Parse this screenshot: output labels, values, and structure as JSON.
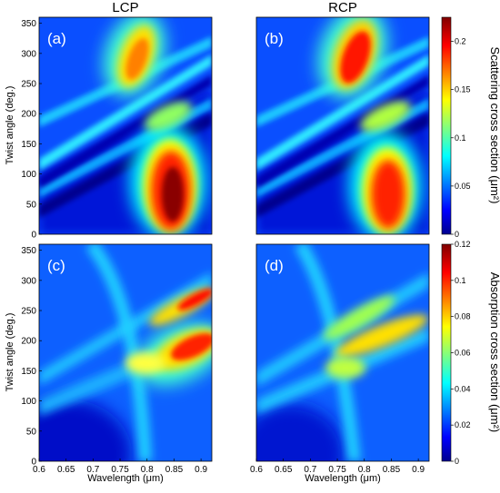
{
  "figure": {
    "column_titles": [
      "LCP",
      "RCP"
    ],
    "ylabel": "Twist angle (deg.)",
    "xlabel": "Wavelength (μm)",
    "colorbar_labels": [
      "Scattering cross section (μm²)",
      "Absorption cross section (μm²)"
    ]
  },
  "chart_data": [
    {
      "type": "heatmap",
      "panel": "(a)",
      "column": "LCP",
      "quantity": "scattering",
      "xlabel": "",
      "ylabel": "Twist angle (deg.)",
      "xlim": [
        0.6,
        0.92
      ],
      "ylim": [
        0,
        360
      ],
      "xticks": [],
      "yticks": [
        0,
        50,
        100,
        150,
        200,
        250,
        300,
        350
      ],
      "clim": [
        0,
        0.225
      ],
      "colormap": "jet",
      "features": [
        {
          "x": 0.84,
          "y": 75,
          "value": 0.22
        },
        {
          "x": 0.77,
          "y": 290,
          "value": 0.16
        },
        {
          "x": 0.78,
          "y": 200,
          "value": 0.08
        }
      ]
    },
    {
      "type": "heatmap",
      "panel": "(b)",
      "column": "RCP",
      "quantity": "scattering",
      "xlabel": "",
      "ylabel": "",
      "xlim": [
        0.6,
        0.92
      ],
      "ylim": [
        0,
        360
      ],
      "xticks": [],
      "yticks": [],
      "clim": [
        0,
        0.225
      ],
      "colormap": "jet",
      "features": [
        {
          "x": 0.84,
          "y": 70,
          "value": 0.2
        },
        {
          "x": 0.78,
          "y": 300,
          "value": 0.21
        },
        {
          "x": 0.78,
          "y": 210,
          "value": 0.1
        }
      ]
    },
    {
      "type": "heatmap",
      "panel": "(c)",
      "column": "LCP",
      "quantity": "absorption",
      "xlabel": "Wavelength (μm)",
      "ylabel": "Twist angle (deg.)",
      "xlim": [
        0.6,
        0.92
      ],
      "ylim": [
        0,
        360
      ],
      "xticks": [
        0.6,
        0.65,
        0.7,
        0.75,
        0.8,
        0.85,
        0.9
      ],
      "yticks": [
        0,
        50,
        100,
        150,
        200,
        250,
        300,
        350
      ],
      "clim": [
        0,
        0.12
      ],
      "colormap": "jet",
      "features": [
        {
          "x": 0.9,
          "y": 270,
          "value": 0.11
        },
        {
          "x": 0.88,
          "y": 185,
          "value": 0.12
        },
        {
          "x": 0.78,
          "y": 160,
          "value": 0.07
        }
      ]
    },
    {
      "type": "heatmap",
      "panel": "(d)",
      "column": "RCP",
      "quantity": "absorption",
      "xlabel": "Wavelength (μm)",
      "ylabel": "",
      "xlim": [
        0.6,
        0.92
      ],
      "ylim": [
        0,
        360
      ],
      "xticks": [
        0.6,
        0.65,
        0.7,
        0.75,
        0.8,
        0.85,
        0.9
      ],
      "yticks": [],
      "clim": [
        0,
        0.12
      ],
      "colormap": "jet",
      "features": [
        {
          "x": 0.82,
          "y": 190,
          "value": 0.07
        },
        {
          "x": 0.78,
          "y": 230,
          "value": 0.06
        }
      ]
    }
  ],
  "colorbars": [
    {
      "ticks": [
        0,
        0.05,
        0.1,
        0.15,
        0.2
      ],
      "tick_labels": [
        "0",
        "0.05",
        "0.1",
        "0.15",
        "0.2"
      ],
      "clim": [
        0,
        0.225
      ]
    },
    {
      "ticks": [
        0,
        0.02,
        0.04,
        0.06,
        0.08,
        0.1,
        0.12
      ],
      "tick_labels": [
        "0",
        "0.02",
        "0.04",
        "0.06",
        "0.08",
        "0.1",
        "0.12"
      ],
      "clim": [
        0,
        0.12
      ]
    }
  ],
  "colors": {
    "jet": [
      "#00008f",
      "#0000ff",
      "#00ffff",
      "#ffff00",
      "#ff0000",
      "#800000"
    ]
  }
}
